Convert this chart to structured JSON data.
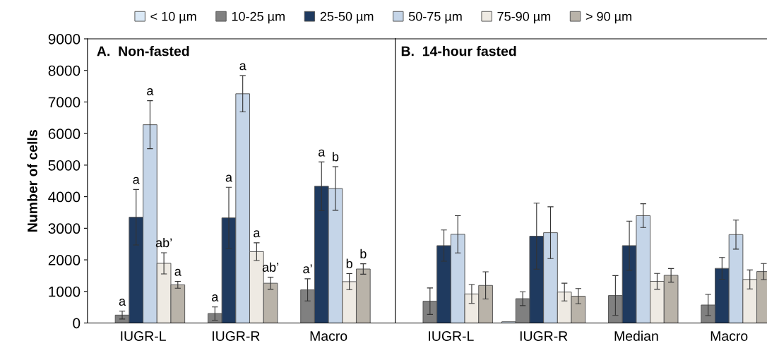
{
  "chart_data": [
    {
      "type": "bar",
      "title": "A.  Non-fasted",
      "ylabel": "Number of cells",
      "categories": [
        "IUGR-L",
        "IUGR-R",
        "Macro"
      ],
      "ylim": [
        0,
        9000
      ],
      "yticks": [
        0,
        1000,
        2000,
        3000,
        4000,
        5000,
        6000,
        7000,
        8000,
        9000
      ],
      "grid": false,
      "legend": "top",
      "series": [
        {
          "name": "< 10 µm",
          "color": "#dbe9f6",
          "values": [
            null,
            null,
            null
          ]
        },
        {
          "name": "10-25 µm",
          "color": "#808080",
          "values": [
            250,
            300,
            1050
          ],
          "errors": [
            125,
            210,
            350
          ]
        },
        {
          "name": "25-50 µm",
          "color": "#1f3a5f",
          "values": [
            3350,
            3330,
            4330
          ],
          "errors": [
            880,
            970,
            770
          ]
        },
        {
          "name": "50-75 µm",
          "color": "#c5d5e8",
          "values": [
            6280,
            7260,
            4260
          ],
          "errors": [
            760,
            575,
            690
          ]
        },
        {
          "name": "75-90 µm",
          "color": "#eeeae3",
          "values": [
            1890,
            2260,
            1310
          ],
          "errors": [
            335,
            280,
            255
          ]
        },
        {
          "name": "> 90 µm",
          "color": "#b9b3a9",
          "values": [
            1210,
            1260,
            1710
          ],
          "errors": [
            110,
            190,
            165
          ]
        }
      ],
      "annotations": [
        "a",
        "a",
        "a",
        "ab’",
        "a",
        "a",
        "a",
        "a",
        "a",
        "ab’",
        "a’",
        "a",
        "b",
        "b",
        "b"
      ]
    },
    {
      "type": "bar",
      "title": "B.  14-hour fasted",
      "categories": [
        "IUGR-L",
        "IUGR-R",
        "Median",
        "Macro"
      ],
      "ylim": [
        0,
        9000
      ],
      "grid": false,
      "tick_labels": "x",
      "series": [
        {
          "color": "#dbe9f6",
          "values": [
            null,
            40,
            null,
            null
          ]
        },
        {
          "color": "#808080",
          "values": [
            690,
            770,
            870,
            570
          ],
          "errors": [
            420,
            220,
            630,
            335
          ]
        },
        {
          "color": "#1f3a5f",
          "values": [
            2450,
            2750,
            2450,
            1730
          ],
          "errors": [
            495,
            1045,
            775,
            345
          ]
        },
        {
          "color": "#c5d5e8",
          "values": [
            2810,
            2860,
            3400,
            2800
          ],
          "errors": [
            590,
            820,
            375,
            460
          ]
        },
        {
          "color": "#eeeae3",
          "values": [
            920,
            980,
            1320,
            1380
          ],
          "errors": [
            300,
            280,
            250,
            300
          ]
        },
        {
          "color": "#b9b3a9",
          "values": [
            1190,
            850,
            1510,
            1630
          ],
          "errors": [
            430,
            240,
            215,
            255
          ]
        }
      ]
    }
  ]
}
